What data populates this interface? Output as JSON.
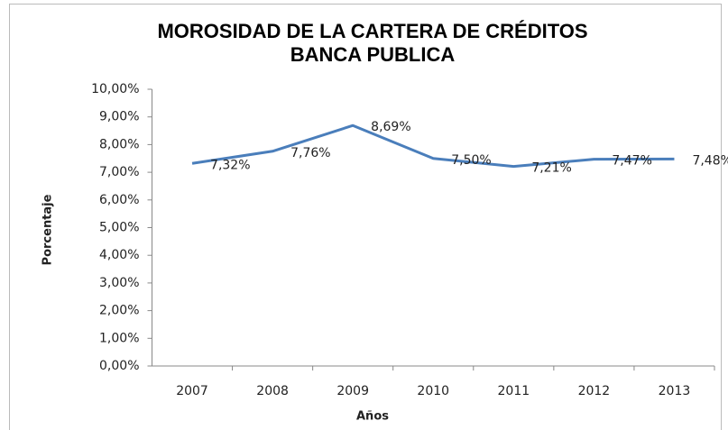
{
  "chart_data": {
    "type": "line",
    "title": "MOROSIDAD DE LA CARTERA DE CRÉDITOS",
    "subtitle": "BANCA PUBLICA",
    "x_label": "Años",
    "y_label": "Porcentaje",
    "categories": [
      "2007",
      "2008",
      "2009",
      "2010",
      "2011",
      "2012",
      "2013"
    ],
    "series": [
      {
        "name": "Banca Publica",
        "color": "#4a7ebb",
        "values": [
          7.32,
          7.76,
          8.69,
          7.5,
          7.21,
          7.47,
          7.48
        ],
        "value_labels": [
          "7,32%",
          "7,76%",
          "8,69%",
          "7,50%",
          "7,21%",
          "7,47%",
          "7,48%"
        ]
      }
    ],
    "ylim": [
      0,
      10
    ],
    "yticks": [
      {
        "value": 0,
        "label": "0,00%"
      },
      {
        "value": 1,
        "label": "1,00%"
      },
      {
        "value": 2,
        "label": "2,00%"
      },
      {
        "value": 3,
        "label": "3,00%"
      },
      {
        "value": 4,
        "label": "4,00%"
      },
      {
        "value": 5,
        "label": "5,00%"
      },
      {
        "value": 6,
        "label": "6,00%"
      },
      {
        "value": 7,
        "label": "7,00%"
      },
      {
        "value": 8,
        "label": "8,00%"
      },
      {
        "value": 9,
        "label": "9,00%"
      },
      {
        "value": 10,
        "label": "10,00%"
      }
    ],
    "grid": false
  }
}
